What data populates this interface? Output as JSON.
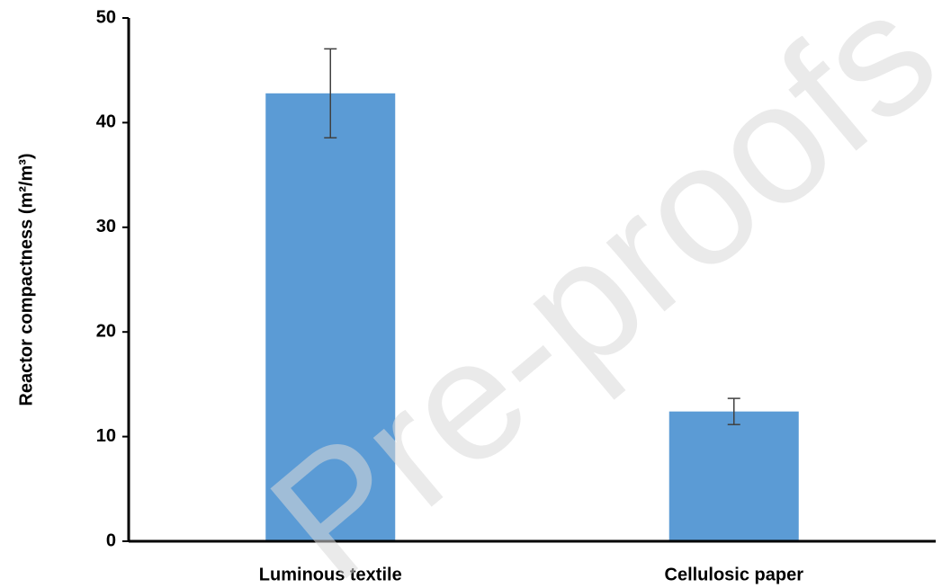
{
  "chart_data": {
    "type": "bar",
    "ylabel": "Reactor compactness (m²/m³)",
    "categories": [
      "Luminous textile",
      "Cellulosic paper"
    ],
    "values": [
      42.8,
      12.4
    ],
    "errors": [
      4.25,
      1.25
    ],
    "color": "#5b9bd5",
    "ylim": [
      0,
      50
    ],
    "yticks": [
      0,
      10,
      20,
      30,
      40,
      50
    ],
    "grid": false,
    "watermark": "Pre-proofs"
  }
}
